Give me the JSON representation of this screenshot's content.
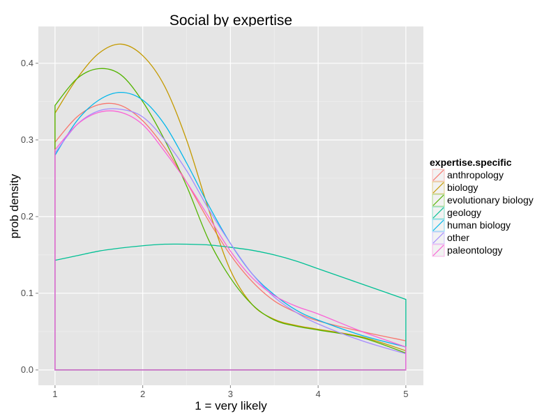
{
  "chart_data": {
    "type": "area",
    "title": "Social  by expertise",
    "xlabel": "1 = very likely",
    "ylabel": "prob density",
    "xlim": [
      0.81,
      5.2
    ],
    "ylim": [
      -0.02,
      0.448
    ],
    "x_ticks": [
      1,
      2,
      3,
      4,
      5
    ],
    "x_tick_labels": [
      "1",
      "2",
      "3",
      "4",
      "5"
    ],
    "y_ticks": [
      0,
      0.1,
      0.2,
      0.3,
      0.4
    ],
    "y_tick_labels": [
      "0.0",
      "0.1",
      "0.2",
      "0.3",
      "0.4"
    ],
    "grid": true,
    "legend": {
      "title": "expertise.specific",
      "placement": "right"
    },
    "x": [
      1,
      1.25,
      1.5,
      1.75,
      2,
      2.25,
      2.5,
      2.75,
      3,
      3.25,
      3.5,
      3.75,
      4,
      4.5,
      5
    ],
    "series": [
      {
        "name": "anthropology",
        "color": "#F8766D",
        "values": [
          0.297,
          0.33,
          0.346,
          0.345,
          0.325,
          0.29,
          0.245,
          0.195,
          0.15,
          0.115,
          0.09,
          0.075,
          0.064,
          0.05,
          0.038
        ]
      },
      {
        "name": "biology",
        "color": "#C49A00",
        "values": [
          0.335,
          0.38,
          0.413,
          0.425,
          0.41,
          0.37,
          0.3,
          0.21,
          0.13,
          0.085,
          0.066,
          0.058,
          0.053,
          0.043,
          0.025
        ]
      },
      {
        "name": "evolutionary biology",
        "color": "#53B400",
        "values": [
          0.345,
          0.38,
          0.393,
          0.385,
          0.35,
          0.3,
          0.24,
          0.17,
          0.12,
          0.085,
          0.065,
          0.057,
          0.052,
          0.042,
          0.022
        ]
      },
      {
        "name": "geology",
        "color": "#00C094",
        "values": [
          0.143,
          0.149,
          0.155,
          0.159,
          0.162,
          0.164,
          0.164,
          0.163,
          0.16,
          0.156,
          0.15,
          0.142,
          0.132,
          0.112,
          0.092
        ]
      },
      {
        "name": "human biology",
        "color": "#00B6EB",
        "values": [
          0.28,
          0.325,
          0.352,
          0.362,
          0.352,
          0.32,
          0.27,
          0.215,
          0.165,
          0.125,
          0.098,
          0.078,
          0.065,
          0.045,
          0.03
        ]
      },
      {
        "name": "other",
        "color": "#A58AFF",
        "values": [
          0.283,
          0.32,
          0.338,
          0.34,
          0.33,
          0.3,
          0.26,
          0.21,
          0.165,
          0.125,
          0.095,
          0.075,
          0.06,
          0.038,
          0.021
        ]
      },
      {
        "name": "paleontology",
        "color": "#FB61D7",
        "values": [
          0.287,
          0.32,
          0.336,
          0.336,
          0.32,
          0.285,
          0.245,
          0.2,
          0.155,
          0.12,
          0.097,
          0.083,
          0.073,
          0.05,
          0.03
        ]
      }
    ]
  }
}
